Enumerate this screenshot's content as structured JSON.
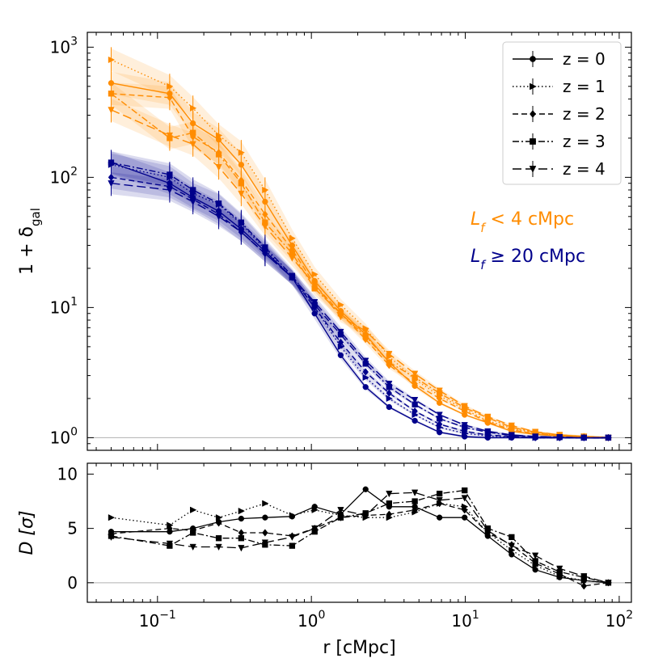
{
  "chart_data": [
    {
      "type": "line",
      "panel": "top",
      "xscale": "log",
      "yscale": "log",
      "xlim": [
        0.035,
        120
      ],
      "ylim": [
        0.8,
        1300
      ],
      "xlabel": "",
      "ylabel": "1 + δ",
      "ylabel_sub": "gal",
      "yticks": [
        {
          "value": 1,
          "base": "10",
          "exp": "0"
        },
        {
          "value": 10,
          "base": "10",
          "exp": "1"
        },
        {
          "value": 100,
          "base": "10",
          "exp": "2"
        },
        {
          "value": 1000,
          "base": "10",
          "exp": "3"
        }
      ],
      "reference_line": 1,
      "x": [
        0.05,
        0.12,
        0.17,
        0.25,
        0.35,
        0.5,
        0.75,
        1.05,
        1.55,
        2.25,
        3.2,
        4.7,
        6.8,
        9.9,
        14,
        20,
        28.5,
        41,
        59,
        85
      ],
      "groups": [
        {
          "name": "L_f < 4 cMpc",
          "color": "#ff8c00",
          "series": [
            {
              "name": "z = 0",
              "linestyle": "solid",
              "marker": "circle",
              "values": [
                530,
                440,
                260,
                195,
                125,
                65,
                30,
                16,
                9.4,
                6.2,
                3.8,
                2.5,
                1.85,
                1.5,
                1.3,
                1.12,
                1.06,
                1.03,
                1.01,
                1.0
              ]
            },
            {
              "name": "z = 1",
              "linestyle": "dotted",
              "marker": "triangle-right",
              "values": [
                800,
                500,
                340,
                210,
                155,
                80,
                34,
                18,
                10.5,
                6.9,
                4.2,
                2.8,
                2.1,
                1.65,
                1.35,
                1.18,
                1.08,
                1.04,
                1.02,
                1.0
              ]
            },
            {
              "name": "z = 2",
              "linestyle": "dashed",
              "marker": "diamond",
              "values": [
                440,
                410,
                205,
                155,
                95,
                52,
                28,
                15,
                9.0,
                5.7,
                3.6,
                2.6,
                2.0,
                1.6,
                1.32,
                1.15,
                1.07,
                1.04,
                1.02,
                1.0
              ]
            },
            {
              "name": "z = 3",
              "linestyle": "dashdot",
              "marker": "square",
              "values": [
                440,
                200,
                220,
                150,
                90,
                45,
                26,
                14,
                9.0,
                6.0,
                3.8,
                2.9,
                2.2,
                1.7,
                1.42,
                1.2,
                1.1,
                1.05,
                1.02,
                1.0
              ]
            },
            {
              "name": "z = 4",
              "linestyle": "longdash",
              "marker": "triangle-down",
              "values": [
                330,
                210,
                180,
                120,
                75,
                42,
                24,
                15,
                8.5,
                6.6,
                4.4,
                3.1,
                2.3,
                1.75,
                1.45,
                1.24,
                1.11,
                1.05,
                1.02,
                1.0
              ]
            }
          ]
        },
        {
          "name": "L_f ≥ 20 cMpc",
          "color": "#00008b",
          "series": [
            {
              "name": "z = 0",
              "linestyle": "solid",
              "marker": "circle",
              "values": [
                130,
                90,
                70,
                55,
                40,
                27,
                17,
                9.0,
                4.3,
                2.45,
                1.72,
                1.35,
                1.1,
                1.02,
                1.0,
                1.0,
                1.0,
                1.0,
                1.0,
                1.0
              ]
            },
            {
              "name": "z = 1",
              "linestyle": "dotted",
              "marker": "triangle-right",
              "values": [
                125,
                100,
                75,
                62,
                44,
                28,
                17,
                10,
                5.0,
                2.9,
                2.0,
                1.5,
                1.2,
                1.08,
                1.03,
                1.01,
                1.0,
                1.0,
                1.0,
                1.0
              ]
            },
            {
              "name": "z = 2",
              "linestyle": "dashed",
              "marker": "diamond",
              "values": [
                100,
                85,
                68,
                52,
                38,
                26,
                17,
                10,
                5.4,
                3.2,
                2.2,
                1.6,
                1.27,
                1.12,
                1.05,
                1.02,
                1.0,
                1.0,
                1.0,
                1.0
              ]
            },
            {
              "name": "z = 3",
              "linestyle": "dashdot",
              "marker": "square",
              "values": [
                130,
                105,
                80,
                63,
                45,
                29,
                17.5,
                10.5,
                6.2,
                3.7,
                2.45,
                1.8,
                1.4,
                1.2,
                1.1,
                1.04,
                1.02,
                1.01,
                1.0,
                1.0
              ]
            },
            {
              "name": "z = 4",
              "linestyle": "longdash",
              "marker": "triangle-down",
              "values": [
                90,
                80,
                65,
                50,
                38,
                26,
                17,
                11,
                6.5,
                3.9,
                2.6,
                1.95,
                1.5,
                1.25,
                1.12,
                1.05,
                1.02,
                1.01,
                1.0,
                1.0
              ]
            }
          ]
        }
      ],
      "annotations": [
        {
          "text": " < 4 cMpc",
          "var": "L",
          "sub": "f",
          "color": "#ff8c00"
        },
        {
          "text": " ≥ 20 cMpc",
          "var": "L",
          "sub": "f",
          "color": "#00008b"
        }
      ],
      "legend": {
        "position": "top-right",
        "entries": [
          {
            "label": "z = 0",
            "linestyle": "solid",
            "marker": "circle"
          },
          {
            "label": "z = 1",
            "linestyle": "dotted",
            "marker": "triangle-right"
          },
          {
            "label": "z = 2",
            "linestyle": "dashed",
            "marker": "diamond"
          },
          {
            "label": "z = 3",
            "linestyle": "dashdot",
            "marker": "square"
          },
          {
            "label": "z = 4",
            "linestyle": "longdash",
            "marker": "triangle-down"
          }
        ]
      }
    },
    {
      "type": "line",
      "panel": "bottom",
      "xscale": "log",
      "yscale": "linear",
      "xlim": [
        0.035,
        120
      ],
      "ylim": [
        -1.8,
        11
      ],
      "xlabel": "r [cMpc]",
      "ylabel": "D [σ]",
      "xticks": [
        {
          "value": 0.1,
          "base": "10",
          "exp": "−1"
        },
        {
          "value": 1,
          "base": "10",
          "exp": "0"
        },
        {
          "value": 10,
          "base": "10",
          "exp": "1"
        },
        {
          "value": 100,
          "base": "10",
          "exp": "2"
        }
      ],
      "yticks": [
        0,
        5,
        10
      ],
      "reference_line": 0,
      "x": [
        0.05,
        0.12,
        0.17,
        0.25,
        0.35,
        0.5,
        0.75,
        1.05,
        1.55,
        2.25,
        3.2,
        4.7,
        6.8,
        9.9,
        14,
        20,
        28.5,
        41,
        59,
        85
      ],
      "series": [
        {
          "name": "z = 0",
          "linestyle": "solid",
          "marker": "circle",
          "values": [
            4.7,
            4.7,
            5.0,
            5.6,
            5.9,
            6.0,
            6.1,
            7.0,
            6.3,
            8.6,
            7.0,
            7.0,
            6.0,
            6.0,
            4.3,
            2.6,
            1.2,
            0.5,
            0.2,
            0.0
          ]
        },
        {
          "name": "z = 1",
          "linestyle": "dotted",
          "marker": "triangle-right",
          "values": [
            6.0,
            5.3,
            6.7,
            6.0,
            6.6,
            7.3,
            6.2,
            6.7,
            6.2,
            6.0,
            6.0,
            6.5,
            7.3,
            7.0,
            4.6,
            3.0,
            1.6,
            0.6,
            0.2,
            0.0
          ]
        },
        {
          "name": "z = 2",
          "linestyle": "dashed",
          "marker": "diamond",
          "values": [
            4.5,
            5.0,
            4.8,
            5.5,
            4.6,
            4.6,
            4.3,
            5.0,
            6.0,
            6.2,
            6.3,
            6.7,
            7.3,
            6.7,
            4.6,
            3.5,
            1.8,
            0.8,
            -0.3,
            0.0
          ]
        },
        {
          "name": "z = 3",
          "linestyle": "dashdot",
          "marker": "square",
          "values": [
            4.3,
            3.4,
            4.6,
            4.1,
            4.1,
            3.5,
            3.4,
            4.7,
            6.0,
            6.4,
            7.3,
            7.5,
            8.2,
            8.5,
            5.0,
            4.2,
            2.0,
            1.0,
            0.5,
            0.0
          ]
        },
        {
          "name": "z = 4",
          "linestyle": "longdash",
          "marker": "triangle-down",
          "values": [
            4.2,
            3.6,
            3.3,
            3.3,
            3.2,
            3.7,
            4.2,
            5.0,
            6.7,
            6.2,
            8.2,
            8.3,
            7.6,
            7.8,
            4.8,
            3.4,
            2.5,
            1.3,
            0.6,
            0.0
          ]
        }
      ]
    }
  ]
}
